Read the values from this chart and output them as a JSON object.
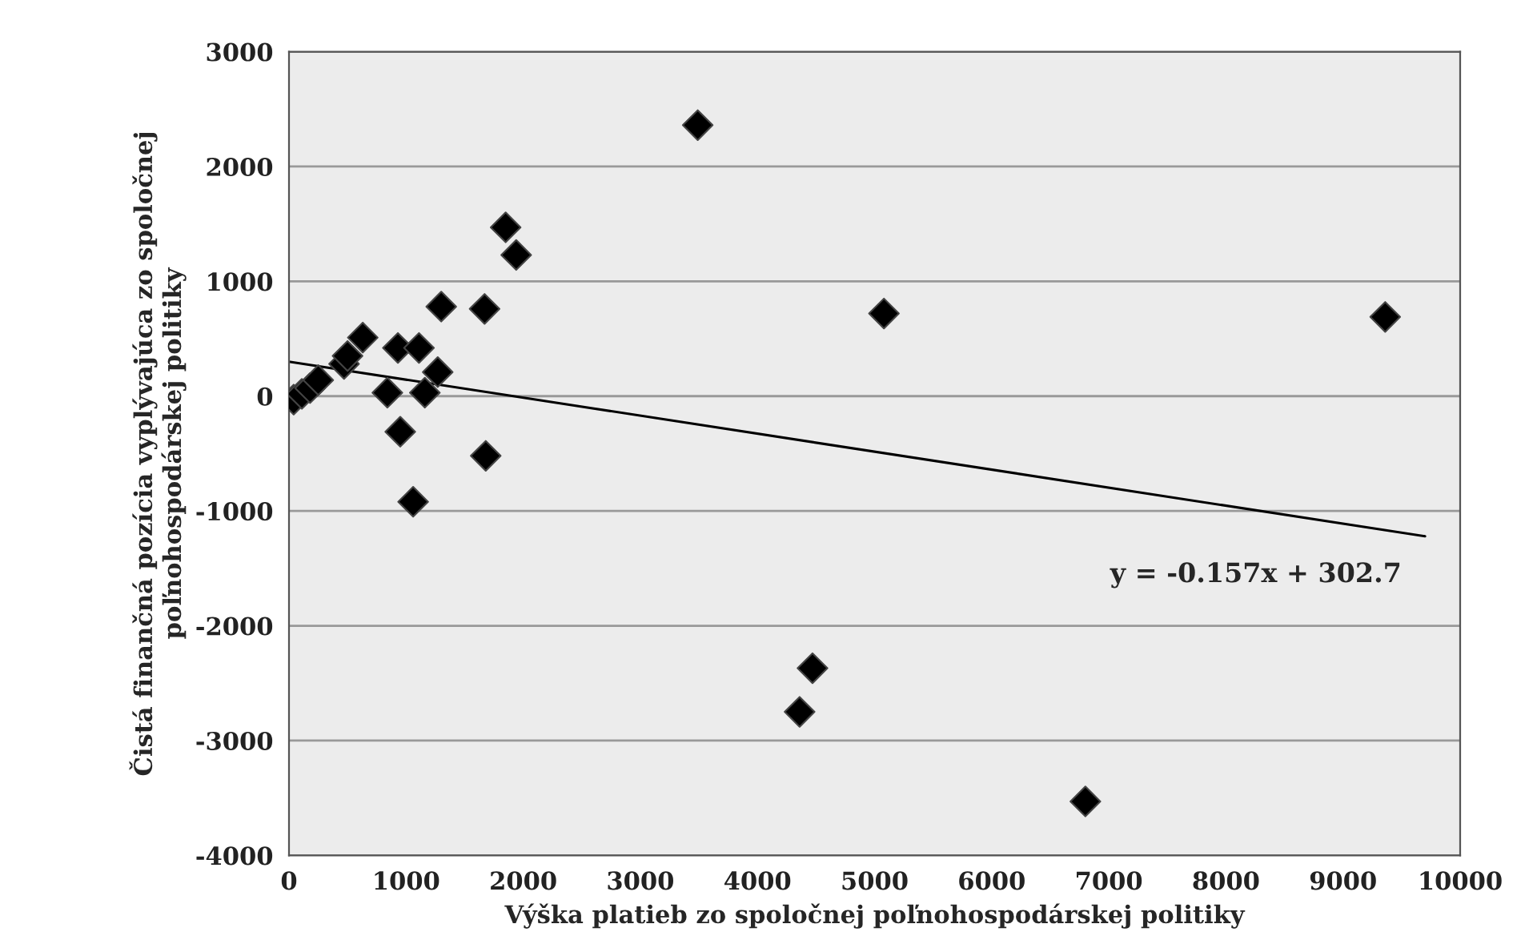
{
  "chart_data": {
    "type": "scatter",
    "xlabel": "Výška platieb zo spoločnej poľnohospodárskej politiky",
    "ylabel": "Čistá finančná pozícia vyplývajúca zo spoločnej poľnohospodárskej politiky",
    "series": [
      {
        "color": "#000000",
        "marker": "diamond",
        "x": [
          40,
          110,
          180,
          250,
          470,
          500,
          630,
          840,
          930,
          950,
          1060,
          1110,
          1160,
          1270,
          1300,
          1670,
          1680,
          1850,
          1940,
          3490,
          4360,
          4470,
          5080,
          6800,
          9360
        ],
        "values": [
          -30,
          20,
          70,
          140,
          280,
          350,
          510,
          30,
          420,
          -310,
          -920,
          420,
          30,
          210,
          780,
          760,
          -520,
          1470,
          1230,
          2360,
          -2750,
          -2370,
          720,
          -3530,
          690
        ]
      },
      {
        "type": "line",
        "marker": "none",
        "color": "#000000",
        "x": [
          0,
          9700
        ],
        "values": [
          300,
          -1220
        ]
      }
    ],
    "annotations": [
      "y = -0.157x + 302.7"
    ],
    "grid": "y",
    "legend": false,
    "xlim": [
      0,
      10000
    ],
    "xticks": [
      0,
      1000,
      2000,
      3000,
      4000,
      5000,
      6000,
      7000,
      8000,
      9000,
      10000
    ],
    "ylim": [
      -4000,
      3000
    ],
    "yticks": [
      -4000,
      -3000,
      -2000,
      -1000,
      0,
      1000,
      2000,
      3000
    ]
  }
}
